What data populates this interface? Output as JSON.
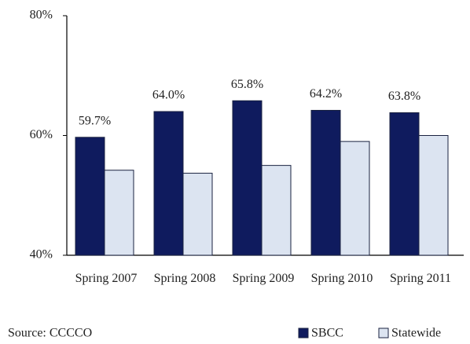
{
  "chart_data": {
    "type": "bar",
    "categories": [
      "Spring 2007",
      "Spring 2008",
      "Spring 2009",
      "Spring 2010",
      "Spring 2011"
    ],
    "series": [
      {
        "name": "SBCC",
        "color": "#0f1b5e",
        "values": [
          59.7,
          64.0,
          65.8,
          64.2,
          63.8
        ],
        "value_labels": [
          "59.7%",
          "64.0%",
          "65.8%",
          "64.2%",
          "63.8%"
        ]
      },
      {
        "name": "Statewide",
        "color": "#dce4f1",
        "values": [
          54.2,
          53.7,
          55.0,
          59.0,
          60.0
        ]
      }
    ],
    "ylim": [
      40,
      80
    ],
    "yticks": [
      {
        "value": 40,
        "label": "40%"
      },
      {
        "value": 60,
        "label": "60%"
      },
      {
        "value": 80,
        "label": "80%"
      }
    ],
    "source": "Source: CCCCO",
    "legend": "bottom-right"
  }
}
